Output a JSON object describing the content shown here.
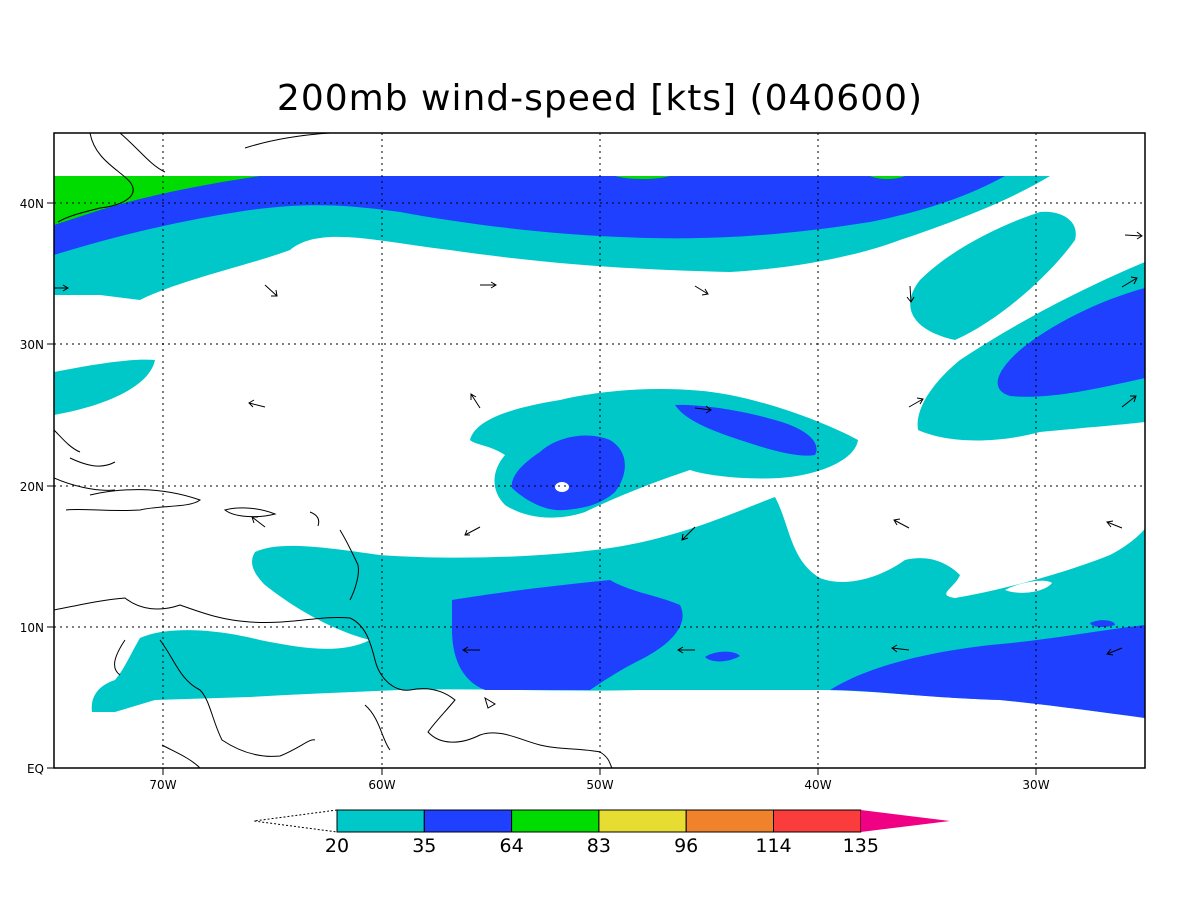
{
  "title": "200mb wind-speed [kts] (040600)",
  "lat_labels": [
    "40N",
    "30N",
    "20N",
    "10N",
    "EQ"
  ],
  "lon_labels": [
    "70W",
    "60W",
    "50W",
    "40W",
    "30W"
  ],
  "colorbar": {
    "labels": [
      "20",
      "35",
      "64",
      "83",
      "96",
      "114",
      "135"
    ],
    "colors": [
      "#00c8c8",
      "#2040ff",
      "#00dc00",
      "#e6dc32",
      "#f0822c",
      "#fa3c3c",
      "#f00082"
    ]
  },
  "map_colors": {
    "band_20_35": "#00c8c8",
    "band_35_64": "#2040ff",
    "band_64_83": "#00dc00"
  }
}
